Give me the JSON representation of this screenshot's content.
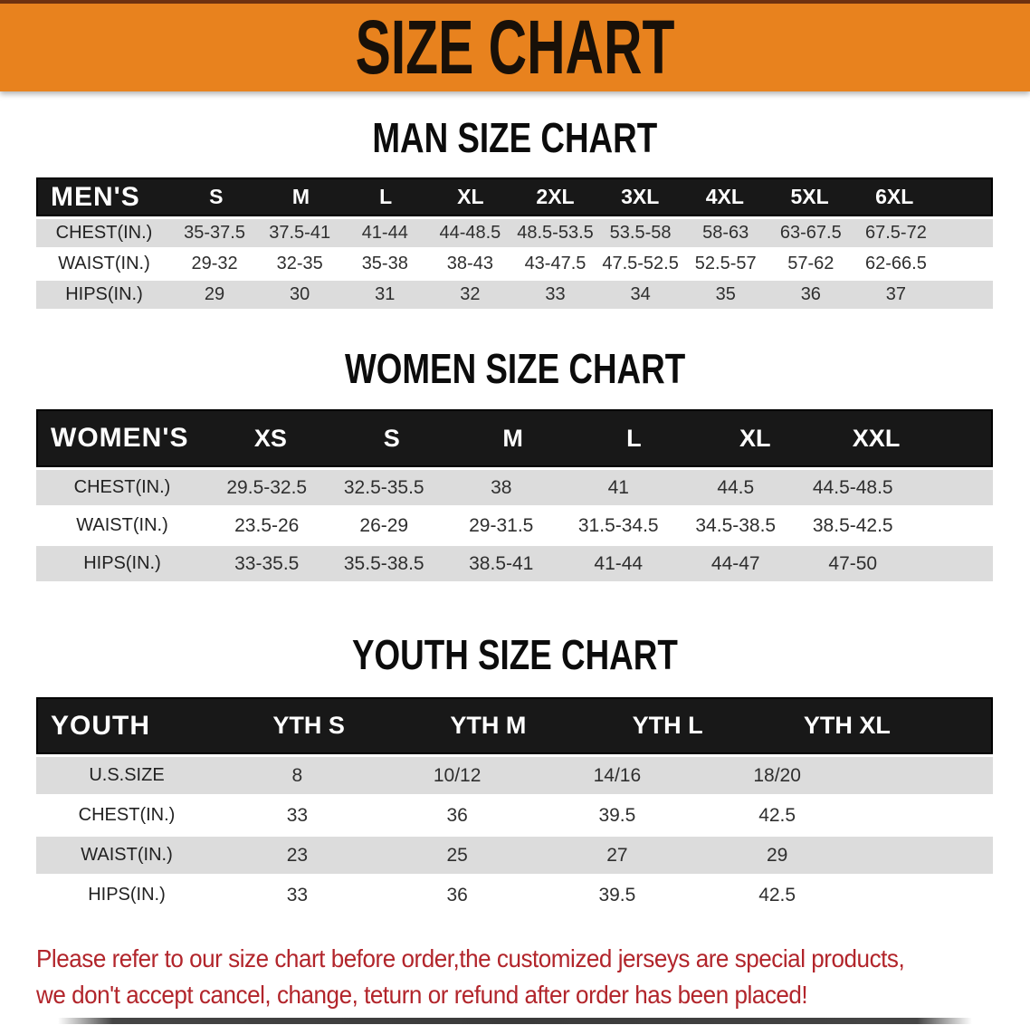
{
  "banner": {
    "title": "SIZE CHART",
    "background": "#e8821e"
  },
  "sections": [
    {
      "heading": "MAN SIZE CHART",
      "table": {
        "header_label": "MEN'S",
        "columns": [
          "S",
          "M",
          "L",
          "XL",
          "2XL",
          "3XL",
          "4XL",
          "5XL",
          "6XL"
        ],
        "rows": [
          {
            "label": "CHEST(IN.)",
            "values": [
              "35-37.5",
              "37.5-41",
              "41-44",
              "44-48.5",
              "48.5-53.5",
              "53.5-58",
              "58-63",
              "63-67.5",
              "67.5-72"
            ]
          },
          {
            "label": "WAIST(IN.)",
            "values": [
              "29-32",
              "32-35",
              "35-38",
              "38-43",
              "43-47.5",
              "47.5-52.5",
              "52.5-57",
              "57-62",
              "62-66.5"
            ]
          },
          {
            "label": "HIPS(IN.)",
            "values": [
              "29",
              "30",
              "31",
              "32",
              "33",
              "34",
              "35",
              "36",
              "37"
            ]
          }
        ]
      }
    },
    {
      "heading": "WOMEN SIZE CHART",
      "table": {
        "header_label": "WOMEN'S",
        "columns": [
          "XS",
          "S",
          "M",
          "L",
          "XL",
          "XXL"
        ],
        "rows": [
          {
            "label": "CHEST(IN.)",
            "values": [
              "29.5-32.5",
              "32.5-35.5",
              "38",
              "41",
              "44.5",
              "44.5-48.5"
            ]
          },
          {
            "label": "WAIST(IN.)",
            "values": [
              "23.5-26",
              "26-29",
              "29-31.5",
              "31.5-34.5",
              "34.5-38.5",
              "38.5-42.5"
            ]
          },
          {
            "label": "HIPS(IN.)",
            "values": [
              "33-35.5",
              "35.5-38.5",
              "38.5-41",
              "41-44",
              "44-47",
              "47-50"
            ]
          }
        ]
      }
    },
    {
      "heading": "YOUTH SIZE CHART",
      "table": {
        "header_label": "YOUTH",
        "columns": [
          "YTH S",
          "YTH M",
          "YTH L",
          "YTH XL"
        ],
        "rows": [
          {
            "label": "U.S.SIZE",
            "values": [
              "8",
              "10/12",
              "14/16",
              "18/20"
            ]
          },
          {
            "label": "CHEST(IN.)",
            "values": [
              "33",
              "36",
              "39.5",
              "42.5"
            ]
          },
          {
            "label": "WAIST(IN.)",
            "values": [
              "23",
              "25",
              "27",
              "29"
            ]
          },
          {
            "label": "HIPS(IN.)",
            "values": [
              "33",
              "36",
              "39.5",
              "42.5"
            ]
          }
        ]
      }
    }
  ],
  "disclaimer": {
    "line1": "Please refer to our size chart before order,the customized jerseys are special products,",
    "line2": "we don't accept cancel, change, teturn or refund after order has been placed!",
    "color": "#b2252b"
  },
  "colors": {
    "banner_orange": "#e8821e",
    "banner_top_edge": "#6e3110",
    "header_bar": "#181818",
    "row_gray": "#dcdcdc",
    "table_text": "#2f2f2f",
    "disclaimer_red": "#b2252b"
  }
}
